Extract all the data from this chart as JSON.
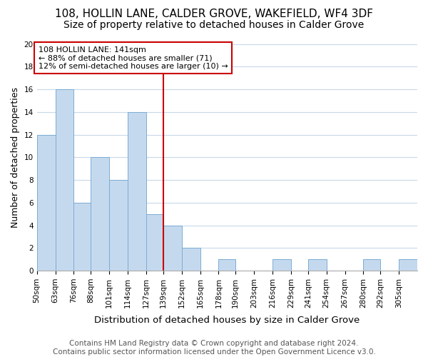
{
  "title": "108, HOLLIN LANE, CALDER GROVE, WAKEFIELD, WF4 3DF",
  "subtitle": "Size of property relative to detached houses in Calder Grove",
  "xlabel": "Distribution of detached houses by size in Calder Grove",
  "ylabel": "Number of detached properties",
  "bar_color": "#c5d9ee",
  "bar_edge_color": "#7aadd4",
  "annotation_line1": "108 HOLLIN LANE: 141sqm",
  "annotation_line2": "← 88% of detached houses are smaller (71)",
  "annotation_line3": "12% of semi-detached houses are larger (10) →",
  "vline_x": 139,
  "vline_color": "#cc0000",
  "annotation_box_color": "#ffffff",
  "annotation_box_edge_color": "#cc0000",
  "bin_edges": [
    50,
    63,
    76,
    88,
    101,
    114,
    127,
    139,
    152,
    165,
    178,
    190,
    203,
    216,
    229,
    241,
    254,
    267,
    280,
    292,
    305,
    318
  ],
  "bin_labels": [
    "50sqm",
    "63sqm",
    "76sqm",
    "88sqm",
    "101sqm",
    "114sqm",
    "127sqm",
    "139sqm",
    "152sqm",
    "165sqm",
    "178sqm",
    "190sqm",
    "203sqm",
    "216sqm",
    "229sqm",
    "241sqm",
    "254sqm",
    "267sqm",
    "280sqm",
    "292sqm",
    "305sqm"
  ],
  "counts": [
    12,
    16,
    6,
    10,
    8,
    14,
    5,
    4,
    2,
    0,
    1,
    0,
    0,
    1,
    0,
    1,
    0,
    0,
    1,
    0,
    1
  ],
  "ylim": [
    0,
    20
  ],
  "yticks": [
    0,
    2,
    4,
    6,
    8,
    10,
    12,
    14,
    16,
    18,
    20
  ],
  "footer_text": "Contains HM Land Registry data © Crown copyright and database right 2024.\nContains public sector information licensed under the Open Government Licence v3.0.",
  "background_color": "#ffffff",
  "grid_color": "#c8d8e8",
  "title_fontsize": 11,
  "subtitle_fontsize": 10,
  "xlabel_fontsize": 9.5,
  "ylabel_fontsize": 9,
  "footer_fontsize": 7.5,
  "tick_fontsize": 7.5
}
